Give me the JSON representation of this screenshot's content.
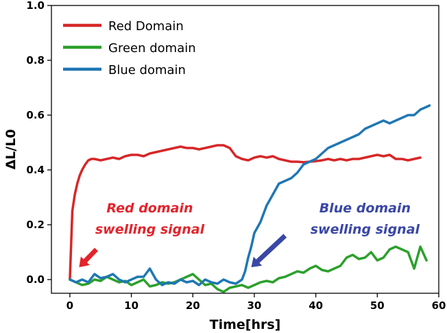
{
  "chart_data": {
    "type": "line",
    "title": "",
    "xlabel": "Time[hrs]",
    "ylabel": "ΔL/L0",
    "xlim": [
      -3,
      60
    ],
    "ylim": [
      -0.05,
      1.0
    ],
    "xticks": [
      0,
      10,
      20,
      30,
      40,
      50,
      60
    ],
    "yticks": [
      0.0,
      0.2,
      0.4,
      0.6,
      0.8,
      1.0
    ],
    "ytick_labels": [
      "0.0",
      "0.2",
      "0.4",
      "0.6",
      "0.8",
      "1.0"
    ],
    "grid": false,
    "legend": "top-left",
    "series": [
      {
        "name": "Red Domain",
        "color": "#d62728",
        "x": [
          0,
          0.4,
          0.8,
          1.2,
          1.6,
          2,
          2.5,
          3,
          3.5,
          4,
          5,
          6,
          7,
          8,
          9,
          10,
          11,
          12,
          13,
          14,
          15,
          16,
          17,
          18,
          19,
          20,
          21,
          22,
          23,
          24,
          25,
          26,
          27,
          28,
          29,
          30,
          31,
          32,
          33,
          34,
          35,
          36,
          37,
          38,
          39,
          40,
          41,
          42,
          43,
          44,
          45,
          46,
          47,
          48,
          49,
          50,
          51,
          52,
          53,
          54,
          55,
          56,
          57
        ],
        "y": [
          0.0,
          0.25,
          0.31,
          0.35,
          0.38,
          0.4,
          0.42,
          0.435,
          0.44,
          0.44,
          0.435,
          0.44,
          0.445,
          0.44,
          0.45,
          0.455,
          0.455,
          0.45,
          0.46,
          0.465,
          0.47,
          0.475,
          0.48,
          0.485,
          0.48,
          0.48,
          0.475,
          0.48,
          0.485,
          0.49,
          0.49,
          0.48,
          0.45,
          0.44,
          0.435,
          0.445,
          0.45,
          0.445,
          0.45,
          0.44,
          0.435,
          0.43,
          0.43,
          0.428,
          0.43,
          0.432,
          0.435,
          0.44,
          0.435,
          0.44,
          0.435,
          0.44,
          0.44,
          0.445,
          0.45,
          0.455,
          0.45,
          0.455,
          0.44,
          0.44,
          0.435,
          0.44,
          0.445
        ]
      },
      {
        "name": "Green domain",
        "color": "#2ca02c",
        "x": [
          0,
          1,
          2,
          3,
          4,
          5,
          6,
          7,
          8,
          9,
          10,
          11,
          12,
          13,
          14,
          15,
          16,
          17,
          18,
          19,
          20,
          21,
          22,
          23,
          24,
          25,
          26,
          27,
          28,
          29,
          30,
          31,
          32,
          33,
          34,
          35,
          36,
          37,
          38,
          39,
          40,
          41,
          42,
          43,
          44,
          45,
          46,
          47,
          48,
          49,
          50,
          51,
          52,
          53,
          54,
          55,
          56,
          57,
          58
        ],
        "y": [
          0.0,
          -0.01,
          -0.02,
          -0.015,
          0.0,
          -0.005,
          0.01,
          0.0,
          -0.01,
          -0.005,
          -0.02,
          -0.01,
          0.0,
          -0.025,
          -0.02,
          -0.01,
          -0.015,
          -0.01,
          0.0,
          0.01,
          0.02,
          0.0,
          -0.02,
          -0.015,
          -0.035,
          -0.045,
          -0.03,
          -0.025,
          -0.02,
          -0.03,
          -0.02,
          -0.01,
          -0.005,
          -0.01,
          0.005,
          0.01,
          0.02,
          0.03,
          0.025,
          0.04,
          0.05,
          0.035,
          0.03,
          0.04,
          0.05,
          0.08,
          0.09,
          0.075,
          0.08,
          0.1,
          0.07,
          0.08,
          0.11,
          0.12,
          0.11,
          0.1,
          0.04,
          0.12,
          0.07
        ]
      },
      {
        "name": "Blue domain",
        "color": "#1f77b4",
        "x": [
          0,
          1,
          2,
          3,
          4,
          5,
          6,
          7,
          8,
          9,
          10,
          11,
          12,
          13,
          14,
          15,
          16,
          17,
          18,
          19,
          20,
          21,
          22,
          23,
          24,
          25,
          26,
          27,
          28,
          28.5,
          29,
          29.5,
          30,
          31,
          32,
          33,
          34,
          35,
          36,
          37,
          38,
          39,
          40,
          41,
          42,
          43,
          44,
          45,
          46,
          47,
          48,
          49,
          50,
          51,
          52,
          53,
          54,
          55,
          56,
          57,
          58,
          58.5
        ],
        "y": [
          0.0,
          -0.01,
          0.0,
          -0.01,
          0.02,
          0.005,
          0.01,
          0.02,
          0.0,
          -0.01,
          0.0,
          0.01,
          0.01,
          0.04,
          0.0,
          -0.02,
          -0.01,
          -0.015,
          0.0,
          -0.01,
          -0.005,
          -0.02,
          0.0,
          -0.01,
          -0.015,
          0.0,
          -0.01,
          -0.015,
          0.0,
          0.03,
          0.08,
          0.12,
          0.17,
          0.21,
          0.27,
          0.31,
          0.35,
          0.36,
          0.37,
          0.39,
          0.42,
          0.43,
          0.44,
          0.46,
          0.48,
          0.49,
          0.5,
          0.51,
          0.52,
          0.53,
          0.55,
          0.56,
          0.57,
          0.58,
          0.57,
          0.58,
          0.59,
          0.6,
          0.6,
          0.62,
          0.63,
          0.635
        ]
      }
    ],
    "annotations": [
      {
        "lines": [
          "Red domain",
          "swelling signal"
        ],
        "color": "#e3242b",
        "arrow_color": "#e3242b",
        "anchor_x": 13,
        "anchor_y": 0.245,
        "arrow_from": [
          4.3,
          0.11
        ],
        "arrow_to": [
          1.5,
          0.045
        ]
      },
      {
        "lines": [
          "Blue domain",
          "swelling signal"
        ],
        "color": "#3a47a6",
        "arrow_color": "#3a47a6",
        "anchor_x": 48,
        "anchor_y": 0.245,
        "arrow_from": [
          35,
          0.16
        ],
        "arrow_to": [
          29.5,
          0.045
        ]
      }
    ]
  }
}
